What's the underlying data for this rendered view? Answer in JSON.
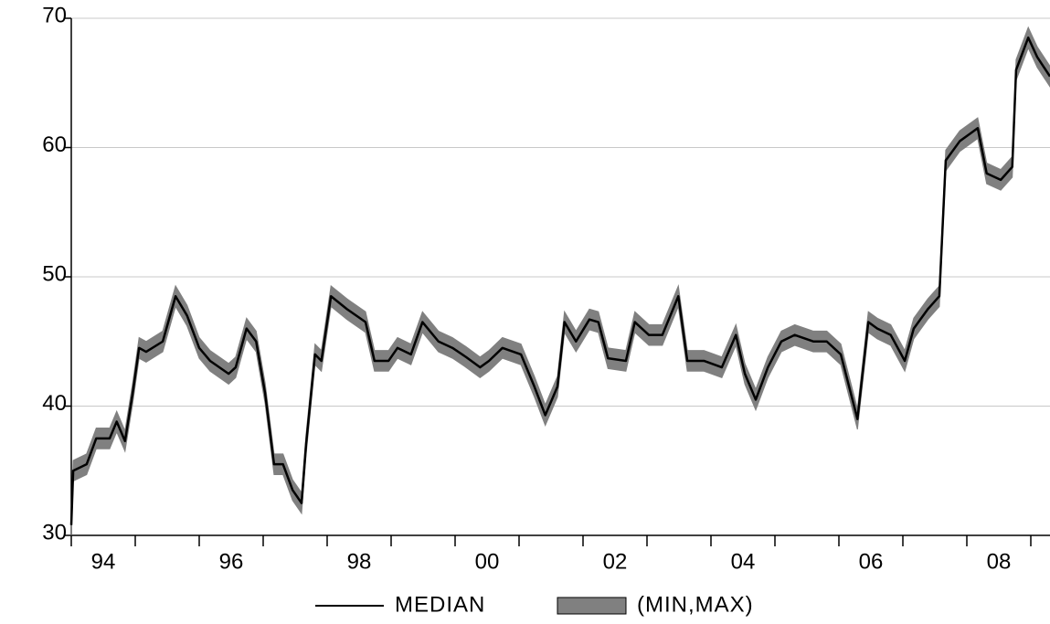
{
  "chart_data": {
    "type": "line",
    "x": [
      1994.0,
      1994.03,
      1994.24,
      1994.39,
      1994.6,
      1994.71,
      1994.84,
      1994.96,
      1995.06,
      1995.17,
      1995.43,
      1995.63,
      1995.81,
      1996.0,
      1996.17,
      1996.46,
      1996.57,
      1996.74,
      1996.89,
      1997.03,
      1997.17,
      1997.31,
      1997.46,
      1997.6,
      1997.67,
      1997.81,
      1997.91,
      1998.06,
      1998.31,
      1998.6,
      1998.74,
      1998.96,
      1999.1,
      1999.31,
      1999.49,
      1999.74,
      1999.96,
      2000.17,
      2000.39,
      2000.53,
      2000.74,
      2001.03,
      2001.24,
      2001.41,
      2001.6,
      2001.71,
      2001.89,
      2002.1,
      2002.24,
      2002.39,
      2002.67,
      2002.81,
      2003.03,
      2003.24,
      2003.49,
      2003.63,
      2003.89,
      2004.17,
      2004.39,
      2004.53,
      2004.7,
      2004.89,
      2005.1,
      2005.31,
      2005.6,
      2005.81,
      2006.03,
      2006.29,
      2006.46,
      2006.6,
      2006.81,
      2007.03,
      2007.17,
      2007.39,
      2007.57,
      2007.67,
      2007.89,
      2008.03,
      2008.17,
      2008.31,
      2008.53,
      2008.71,
      2008.77,
      2008.96,
      2009.1,
      2009.3
    ],
    "series": [
      {
        "name": "MEDIAN",
        "color": "#000000",
        "values": [
          30.8,
          35,
          35.5,
          37.5,
          37.5,
          38.8,
          37.3,
          41,
          44.5,
          44.2,
          45,
          48.5,
          47,
          44.5,
          43.5,
          42.5,
          43,
          46,
          45,
          41,
          35.5,
          35.5,
          33.5,
          32.5,
          37,
          44,
          43.5,
          48.5,
          47.5,
          46.5,
          43.5,
          43.5,
          44.5,
          44,
          46.5,
          45,
          44.5,
          43.8,
          43,
          43.5,
          44.5,
          44,
          41.5,
          39.3,
          41.5,
          46.5,
          45,
          46.7,
          46.5,
          43.7,
          43.5,
          46.5,
          45.5,
          45.5,
          48.5,
          43.5,
          43.5,
          43,
          45.5,
          42.5,
          40.5,
          43,
          45,
          45.5,
          45,
          45,
          44,
          39,
          46.5,
          46,
          45.5,
          43.5,
          46,
          47.5,
          48.5,
          59,
          60.5,
          61,
          61.5,
          58,
          57.5,
          58.5,
          66,
          68.5,
          67,
          65.5
        ]
      },
      {
        "name": "(MIN,MAX)",
        "color": "#808080",
        "lower": [
          30,
          34.2,
          34.7,
          36.7,
          36.7,
          38,
          36.5,
          40.2,
          43.7,
          43.4,
          44.2,
          47.7,
          46.2,
          43.7,
          42.7,
          41.7,
          42.2,
          45.2,
          44.2,
          40.2,
          34.7,
          34.7,
          32.7,
          31.7,
          36.2,
          43.2,
          42.7,
          47.7,
          46.7,
          45.7,
          42.7,
          42.7,
          43.7,
          43.2,
          45.7,
          44.2,
          43.7,
          43,
          42.2,
          42.7,
          43.7,
          43.2,
          40.7,
          38.5,
          40.7,
          45.7,
          44.2,
          45.9,
          45.7,
          42.9,
          42.7,
          45.7,
          44.7,
          44.7,
          47.7,
          42.7,
          42.7,
          42.2,
          44.7,
          41.7,
          39.7,
          42.2,
          44.2,
          44.7,
          44.2,
          44.2,
          43.2,
          38.2,
          45.7,
          45.2,
          44.7,
          42.7,
          45.2,
          46.7,
          47.7,
          58.2,
          59.7,
          60.2,
          60.7,
          57.2,
          56.7,
          57.7,
          65.2,
          67.7,
          66.2,
          64.7
        ],
        "upper": [
          31.6,
          35.8,
          36.3,
          38.3,
          38.3,
          39.6,
          38.1,
          41.8,
          45.3,
          45,
          45.8,
          49.3,
          47.8,
          45.3,
          44.3,
          43.3,
          43.8,
          46.8,
          45.8,
          41.8,
          36.3,
          36.3,
          34.3,
          33.3,
          37.8,
          44.8,
          44.3,
          49.3,
          48.3,
          47.3,
          44.3,
          44.3,
          45.3,
          44.8,
          47.3,
          45.8,
          45.3,
          44.6,
          43.8,
          44.3,
          45.3,
          44.8,
          42.3,
          40.1,
          42.3,
          47.3,
          45.8,
          47.5,
          47.3,
          44.5,
          44.3,
          47.3,
          46.3,
          46.3,
          49.3,
          44.3,
          44.3,
          43.8,
          46.3,
          43.3,
          41.3,
          43.8,
          45.8,
          46.3,
          45.8,
          45.8,
          44.8,
          39.8,
          47.3,
          46.8,
          46.3,
          44.3,
          46.8,
          48.3,
          49.3,
          59.8,
          61.3,
          61.8,
          62.3,
          58.8,
          58.3,
          59.3,
          66.8,
          69.3,
          67.8,
          66.3
        ]
      }
    ],
    "xlim": [
      1994,
      2009.3
    ],
    "xticks": [
      {
        "value": 1995,
        "label": "94"
      },
      {
        "value": 1997,
        "label": "96"
      },
      {
        "value": 1999,
        "label": "98"
      },
      {
        "value": 2001,
        "label": "00"
      },
      {
        "value": 2003,
        "label": "02"
      },
      {
        "value": 2005,
        "label": "04"
      },
      {
        "value": 2007,
        "label": "06"
      },
      {
        "value": 2009,
        "label": "08"
      }
    ],
    "xminor_ticks": [
      1994,
      1995,
      1996,
      1997,
      1998,
      1999,
      2000,
      2001,
      2002,
      2003,
      2004,
      2005,
      2006,
      2007,
      2008,
      2009
    ],
    "ylim": [
      30,
      70
    ],
    "yticks": [
      30,
      40,
      50,
      60,
      70
    ],
    "grid": true
  }
}
